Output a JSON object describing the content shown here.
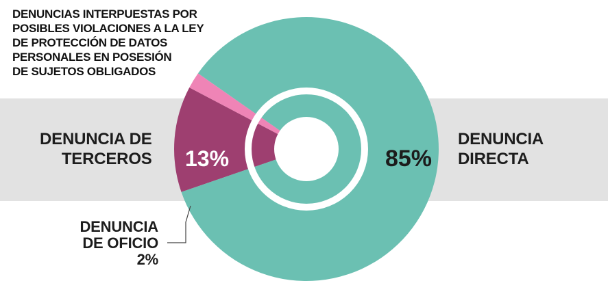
{
  "title": "DENUNCIAS INTERPUESTAS  POR\nPOSIBLES VIOLACIONES A LA LEY\nDE PROTECCIÓN DE DATOS\nPERSONALES EN POSESIÓN\nDE SUJETOS OBLIGADOS",
  "chart_data": {
    "type": "pie",
    "title": "DENUNCIAS INTERPUESTAS  POR\nPOSIBLES VIOLACIONES A LA LEY\nDE PROTECCIÓN DE DATOS\nPERSONALES EN POSESIÓN\nDE SUJETOS OBLIGADOS",
    "slices": [
      {
        "label_lines": [
          "DENUNCIA",
          "DIRECTA"
        ],
        "value": 85,
        "display": "85%",
        "color": "#6bc0b2"
      },
      {
        "label_lines": [
          "DENUNCIA DE",
          "TERCEROS"
        ],
        "value": 13,
        "display": "13%",
        "color": "#9e3f70"
      },
      {
        "label_lines": [
          "DENUNCIA",
          "DE OFICIO"
        ],
        "value": 2,
        "display": "2%",
        "color": "#ef84b6"
      }
    ],
    "legend": "none"
  },
  "labels": {
    "terceros": {
      "line1": "DENUNCIA DE",
      "line2": "TERCEROS"
    },
    "directa": {
      "line1": "DENUNCIA",
      "line2": "DIRECTA"
    },
    "oficio": {
      "line1": "DENUNCIA",
      "line2": "DE OFICIO",
      "value": "2%"
    }
  },
  "colors": {
    "directa": "#6bc0b2",
    "terceros": "#9e3f70",
    "oficio": "#ef84b6",
    "band": "#e2e2e2",
    "text": "#1d1d1d"
  }
}
